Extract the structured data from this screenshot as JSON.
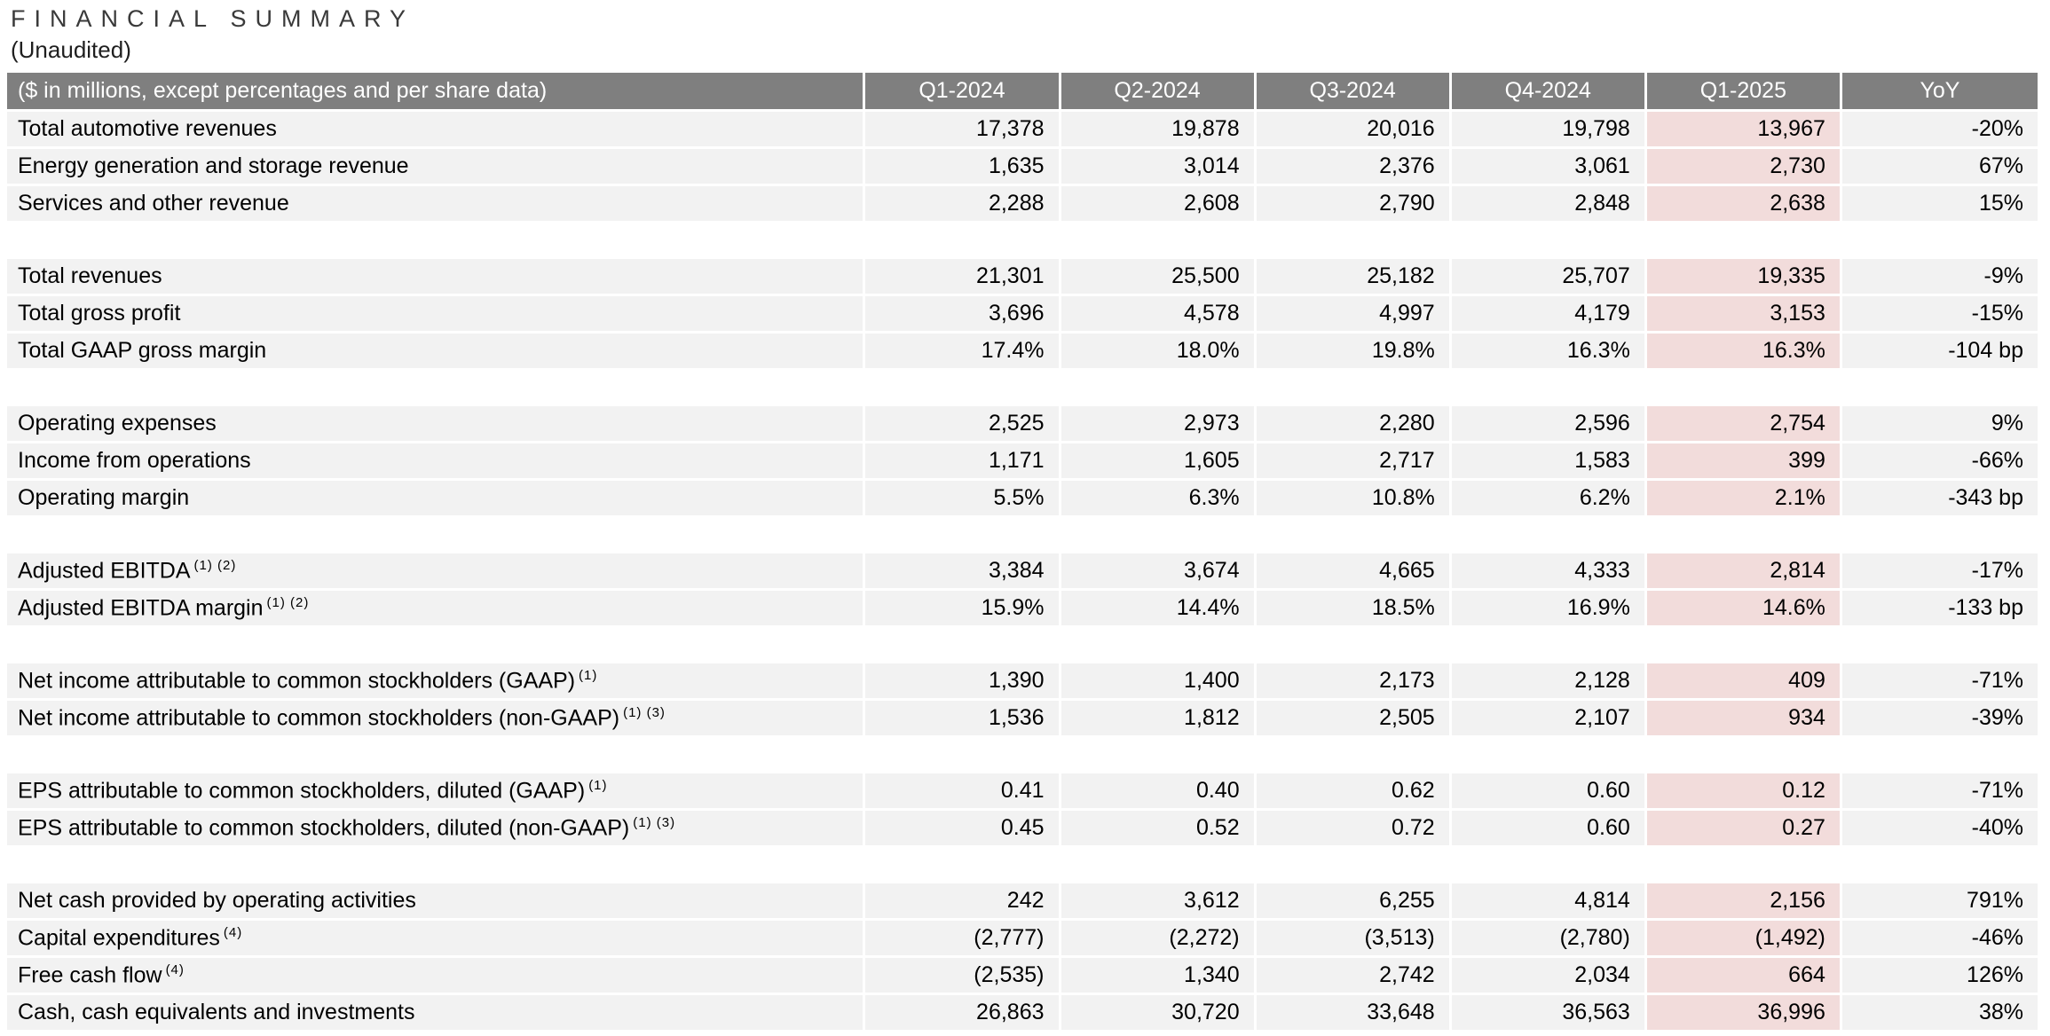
{
  "page": {
    "title": "F I N A N C I A L   S U M M A R Y",
    "title_plain": "FINANCIAL SUMMARY",
    "subtitle": "(Unaudited)"
  },
  "colors": {
    "header_bg": "#7f7f7f",
    "header_text": "#ffffff",
    "row_bg": "#f2f2f2",
    "highlight_bg": "#f2dcdb",
    "body_text": "#000000"
  },
  "table": {
    "label_header": "($ in millions, except percentages and per share data)",
    "columns": [
      "Q1-2024",
      "Q2-2024",
      "Q3-2024",
      "Q4-2024",
      "Q1-2025",
      "YoY"
    ],
    "highlight_column": "Q1-2025",
    "rows": [
      {
        "type": "data",
        "label": "Total automotive revenues",
        "sup": "",
        "values": [
          "17,378",
          "19,878",
          "20,016",
          "19,798",
          "13,967",
          "-20%"
        ]
      },
      {
        "type": "data",
        "label": "Energy generation and storage revenue",
        "sup": "",
        "values": [
          "1,635",
          "3,014",
          "2,376",
          "3,061",
          "2,730",
          "67%"
        ]
      },
      {
        "type": "data",
        "label": "Services and other revenue",
        "sup": "",
        "values": [
          "2,288",
          "2,608",
          "2,790",
          "2,848",
          "2,638",
          "15%"
        ]
      },
      {
        "type": "spacer"
      },
      {
        "type": "data",
        "label": "Total revenues",
        "sup": "",
        "values": [
          "21,301",
          "25,500",
          "25,182",
          "25,707",
          "19,335",
          "-9%"
        ]
      },
      {
        "type": "data",
        "label": "Total gross profit",
        "sup": "",
        "values": [
          "3,696",
          "4,578",
          "4,997",
          "4,179",
          "3,153",
          "-15%"
        ]
      },
      {
        "type": "data",
        "label": "Total GAAP gross margin",
        "sup": "",
        "values": [
          "17.4%",
          "18.0%",
          "19.8%",
          "16.3%",
          "16.3%",
          "-104 bp"
        ]
      },
      {
        "type": "spacer"
      },
      {
        "type": "data",
        "label": "Operating expenses",
        "sup": "",
        "values": [
          "2,525",
          "2,973",
          "2,280",
          "2,596",
          "2,754",
          "9%"
        ]
      },
      {
        "type": "data",
        "label": "Income from operations",
        "sup": "",
        "values": [
          "1,171",
          "1,605",
          "2,717",
          "1,583",
          "399",
          "-66%"
        ]
      },
      {
        "type": "data",
        "label": "Operating margin",
        "sup": "",
        "values": [
          "5.5%",
          "6.3%",
          "10.8%",
          "6.2%",
          "2.1%",
          "-343 bp"
        ]
      },
      {
        "type": "spacer"
      },
      {
        "type": "data",
        "label": "Adjusted EBITDA",
        "sup": "(1) (2)",
        "values": [
          "3,384",
          "3,674",
          "4,665",
          "4,333",
          "2,814",
          "-17%"
        ]
      },
      {
        "type": "data",
        "label": "Adjusted EBITDA margin",
        "sup": "(1) (2)",
        "values": [
          "15.9%",
          "14.4%",
          "18.5%",
          "16.9%",
          "14.6%",
          "-133 bp"
        ]
      },
      {
        "type": "spacer"
      },
      {
        "type": "data",
        "label": "Net income attributable to common stockholders (GAAP)",
        "sup": "(1)",
        "values": [
          "1,390",
          "1,400",
          "2,173",
          "2,128",
          "409",
          "-71%"
        ]
      },
      {
        "type": "data",
        "label": "Net income attributable to common stockholders (non-GAAP)",
        "sup": "(1) (3)",
        "values": [
          "1,536",
          "1,812",
          "2,505",
          "2,107",
          "934",
          "-39%"
        ]
      },
      {
        "type": "spacer"
      },
      {
        "type": "data",
        "label": "EPS attributable to common stockholders, diluted (GAAP)",
        "sup": "(1)",
        "values": [
          "0.41",
          "0.40",
          "0.62",
          "0.60",
          "0.12",
          "-71%"
        ]
      },
      {
        "type": "data",
        "label": "EPS attributable to common stockholders, diluted (non-GAAP)",
        "sup": "(1) (3)",
        "values": [
          "0.45",
          "0.52",
          "0.72",
          "0.60",
          "0.27",
          "-40%"
        ]
      },
      {
        "type": "spacer"
      },
      {
        "type": "data",
        "label": "Net cash provided by operating activities",
        "sup": "",
        "values": [
          "242",
          "3,612",
          "6,255",
          "4,814",
          "2,156",
          "791%"
        ]
      },
      {
        "type": "data",
        "label": "Capital expenditures",
        "sup": "(4)",
        "values": [
          "(2,777)",
          "(2,272)",
          "(3,513)",
          "(2,780)",
          "(1,492)",
          "-46%"
        ]
      },
      {
        "type": "data",
        "label": "Free cash flow",
        "sup": "(4)",
        "values": [
          "(2,535)",
          "1,340",
          "2,742",
          "2,034",
          "664",
          "126%"
        ]
      },
      {
        "type": "data",
        "label": "Cash, cash equivalents and investments",
        "sup": "",
        "values": [
          "26,863",
          "30,720",
          "33,648",
          "36,563",
          "36,996",
          "38%"
        ]
      }
    ]
  }
}
